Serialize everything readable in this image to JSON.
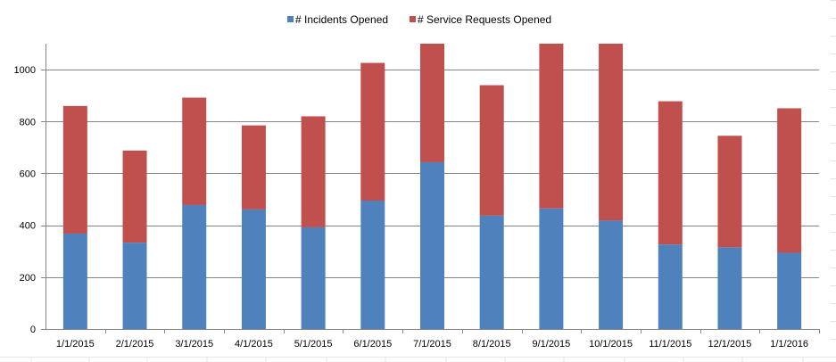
{
  "chart_data": {
    "type": "bar",
    "stacked": true,
    "categories": [
      "1/1/2015",
      "2/1/2015",
      "3/1/2015",
      "4/1/2015",
      "5/1/2015",
      "6/1/2015",
      "7/1/2015",
      "8/1/2015",
      "9/1/2015",
      "10/1/2015",
      "11/1/2015",
      "12/1/2015",
      "1/1/2016"
    ],
    "series": [
      {
        "name": "# Incidents Opened",
        "color": "#4F81BD",
        "values": [
          368,
          333,
          478,
          461,
          392,
          495,
          643,
          437,
          465,
          418,
          326,
          315,
          294
        ]
      },
      {
        "name": "# Service Requests Opened",
        "color": "#C0504D",
        "values": [
          492,
          355,
          414,
          324,
          428,
          531,
          457,
          503,
          635,
          682,
          552,
          430,
          557
        ]
      }
    ],
    "ylim": [
      0,
      1100
    ],
    "yticks": [
      0,
      200,
      400,
      600,
      800,
      1000
    ],
    "grid": true,
    "legend_position": "top"
  }
}
